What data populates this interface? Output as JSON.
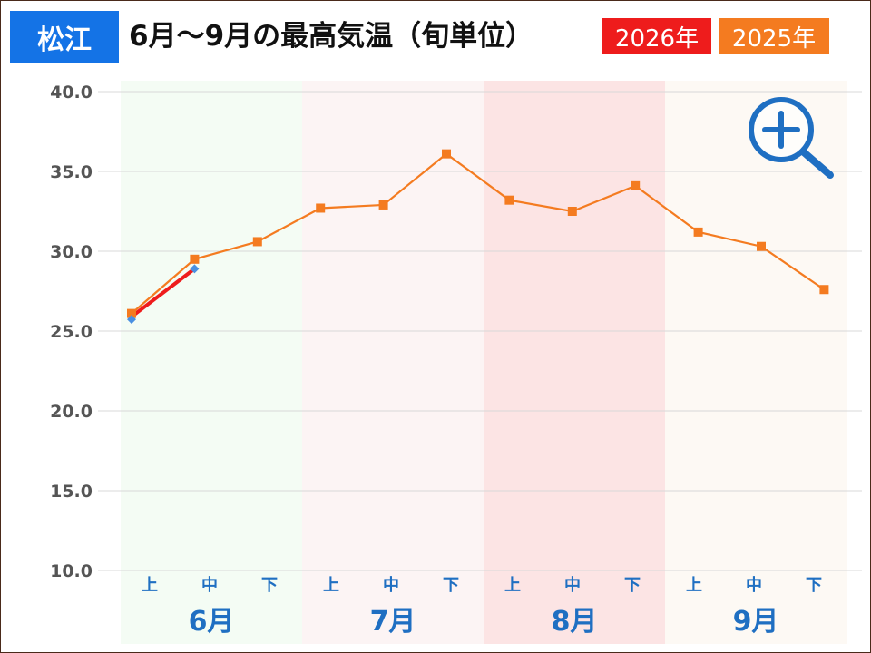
{
  "header": {
    "city": "松江",
    "title": "6月〜9月の最高気温（旬単位）"
  },
  "legend": [
    {
      "label": "2026年",
      "color": "#ee1c1c"
    },
    {
      "label": "2025年",
      "color": "#f47b20"
    }
  ],
  "zoom_icon": "zoom-in-icon",
  "chart_data": {
    "type": "line",
    "y_ticks": [
      "40.0",
      "35.0",
      "30.0",
      "25.0",
      "20.0",
      "15.0",
      "10.0"
    ],
    "ylim": [
      10,
      40
    ],
    "x_labels": [
      "上",
      "中",
      "下",
      "上",
      "中",
      "下",
      "上",
      "中",
      "下",
      "上",
      "中",
      "下"
    ],
    "months": [
      {
        "label": "6月",
        "color": "#f4fcf4"
      },
      {
        "label": "7月",
        "color": "#fcf4f4"
      },
      {
        "label": "8月",
        "color": "#fce4e4"
      },
      {
        "label": "9月",
        "color": "#fdf9f4"
      }
    ],
    "grid": true,
    "series": [
      {
        "name": "2025年",
        "color": "#f47b20",
        "marker": "square",
        "values": [
          26.1,
          29.5,
          30.6,
          32.7,
          32.9,
          36.1,
          33.2,
          32.5,
          34.1,
          31.2,
          30.3,
          27.6
        ]
      },
      {
        "name": "2026年",
        "color": "#ee1c1c",
        "marker": "diamond",
        "values": [
          25.9,
          28.9
        ]
      }
    ]
  }
}
